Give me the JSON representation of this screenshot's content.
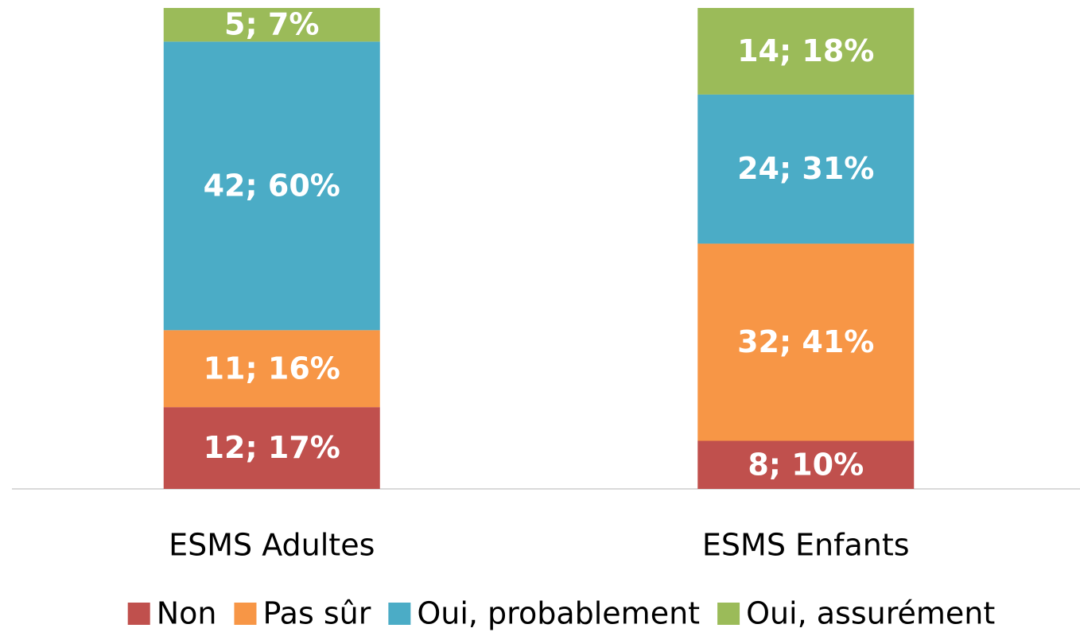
{
  "chart_data": {
    "type": "stacked_bar",
    "categories": [
      "ESMS Adultes",
      "ESMS Enfants"
    ],
    "series": [
      {
        "name": "Non",
        "color": "#c0504d",
        "values": [
          17,
          10
        ],
        "value_labels": [
          "12; 17%",
          "8; 10%"
        ]
      },
      {
        "name": "Pas sûr",
        "color": "#f79646",
        "values": [
          16,
          41
        ],
        "value_labels": [
          "11; 16%",
          "32; 41%"
        ]
      },
      {
        "name": "Oui, probablement",
        "color": "#4bacc6",
        "values": [
          60,
          31
        ],
        "value_labels": [
          "42; 60%",
          "24; 31%"
        ]
      },
      {
        "name": "Oui, assurément",
        "color": "#9bbb59",
        "values": [
          7,
          18
        ],
        "value_labels": [
          "5; 7%",
          "14; 18%"
        ]
      }
    ],
    "legend": "bottom"
  }
}
